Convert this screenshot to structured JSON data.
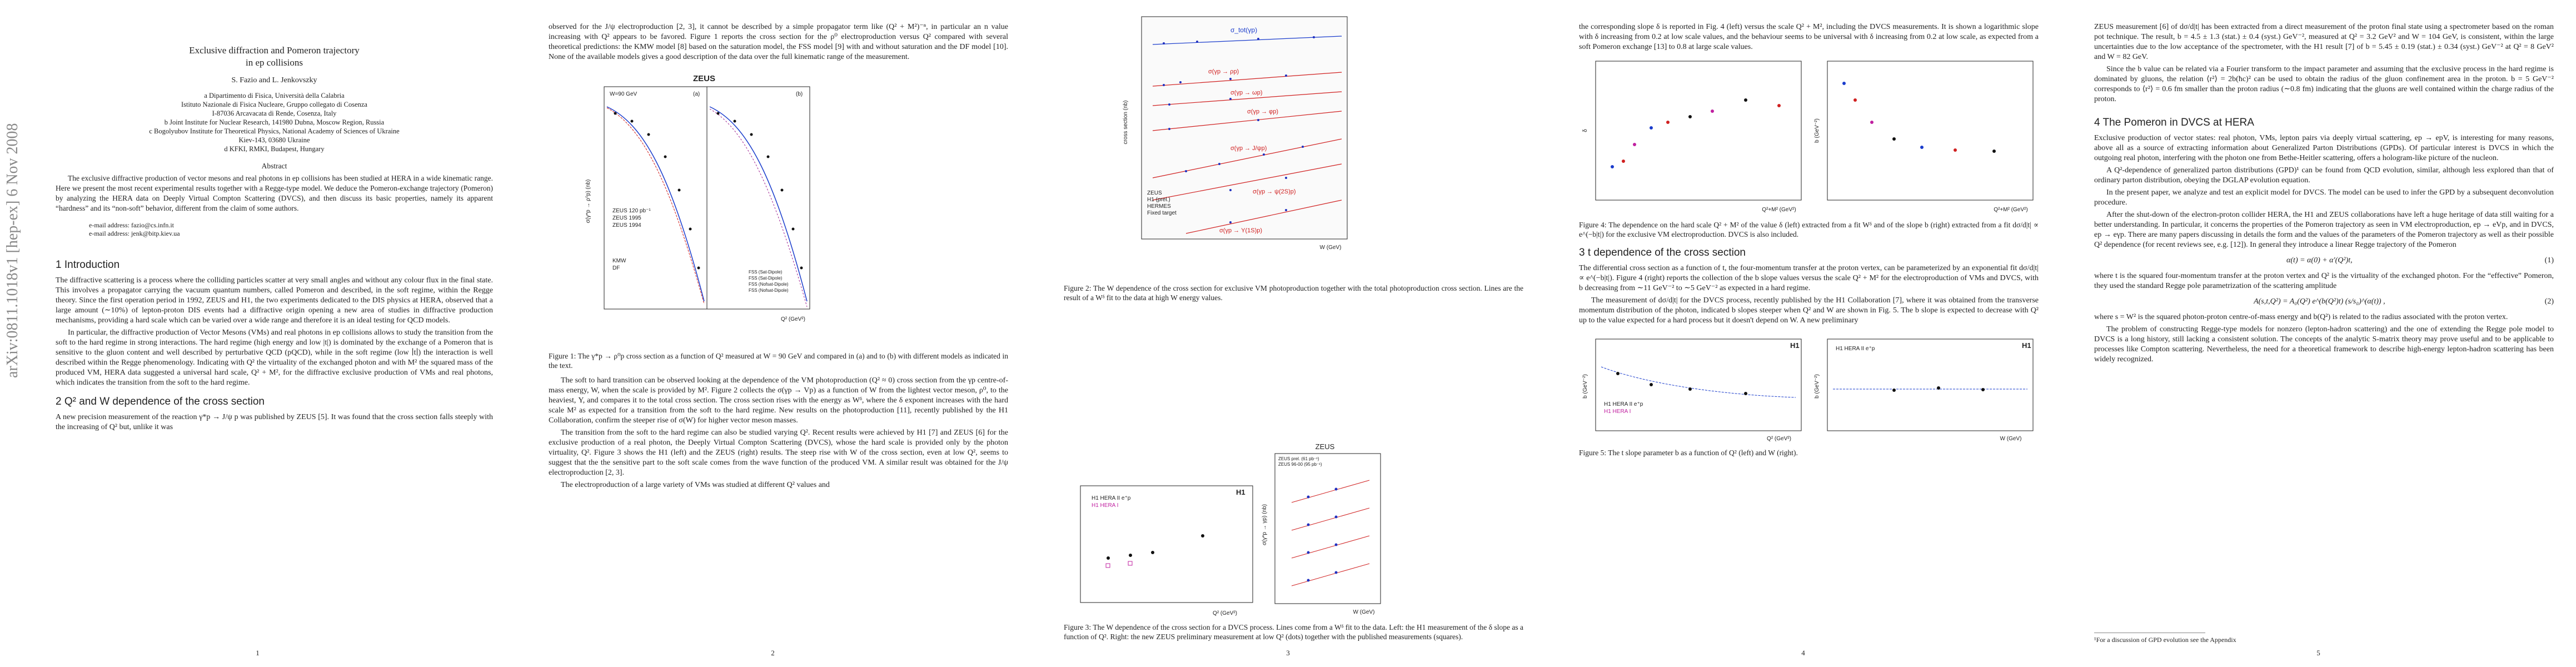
{
  "pages": [
    {
      "arxiv_stamp": "arXiv:0811.1018v1  [hep-ex]  6 Nov 2008",
      "title_lines": [
        "Exclusive diffraction and Pomeron trajectory",
        "in ep collisions"
      ],
      "authors": "S. Fazio and L. Jenkovszky",
      "affiliations": [
        "a Dipartimento di Fisica, Università della Calabria",
        "Istituto Nazionale di Fisica Nucleare, Gruppo collegato di Cosenza",
        "I-87036 Arcavacata di Rende, Cosenza, Italy",
        "b Joint Institute for Nuclear Research, 141980 Dubna, Moscow Region, Russia",
        "c Bogolyubov Institute for Theoretical Physics, National Academy of Sciences of Ukraine",
        "Kiev-143, 03680 Ukraine",
        "d KFKI, RMKI, Budapest, Hungary"
      ],
      "abstract_heading": "Abstract",
      "abstract": "The exclusive diffractive production of vector mesons and real photons in ep collisions has been studied at HERA in a wide kinematic range. Here we present the most recent experimental results together with a Regge-type model. We deduce the Pomeron-exchange trajectory (Pomeron) by analyzing the HERA data on Deeply Virtual Compton Scattering (DVCS), and then discuss its basic properties, namely its apparent “hardness” and its “non-soft” behavior, different from the claim of some authors.",
      "emails": [
        "e-mail address: fazio@cs.infn.it",
        "e-mail address: jenk@bitp.kiev.ua"
      ],
      "section_heading": "1   Introduction",
      "paragraphs": [
        "The diffractive scattering is a process where the colliding particles scatter at very small angles and without any colour flux in the final state. This involves a propagator carrying the vacuum quantum numbers, called Pomeron and described, in the soft regime, within the Regge theory. Since the first operation period in 1992, ZEUS and H1, the two experiments dedicated to the DIS physics at HERA, observed that a large amount (∼10%) of lepton-proton DIS events had a diffractive origin opening a new area of studies in diffractive production mechanisms, providing a hard scale which can be varied over a wide range and therefore it is an ideal testing for QCD models.",
        "In particular, the diffractive production of Vector Mesons (VMs) and real photons in ep collisions allows to study the transition from the soft to the hard regime in strong interactions. The hard regime (high energy and low |t|) is dominated by the exchange of a Pomeron that is sensitive to the gluon content and well described by perturbative QCD (pQCD), while in the soft regime (low ∣t∣) the interaction is well described within the Regge phenomenology. Indicating with Q² the virtuality of the exchanged photon and with M² the squared mass of the produced VM, HERA data suggested a universal hard scale, Q² + M², for the diffractive exclusive production of VMs and real photons, which indicates the transition from the soft to the hard regime."
      ],
      "section2_heading": "2   Q² and W dependence of the cross section",
      "section2_paragraph": "A new precision measurement of the reaction γ*p → J/ψ p was published by ZEUS [5]. It was found that the cross section falls steeply with the increasing of Q² but, unlike it was",
      "page_number": "1"
    },
    {
      "paragraph_top": "observed for the J/ψ electroproduction [2, 3], it cannot be described by a simple propagator term like (Q² + M²)⁻ⁿ, in particular an n value increasing with Q² appears to be favored. Figure 1 reports the cross section for the ρ⁰ electroproduction versus Q² compared with several theoretical predictions: the KMW model [8] based on the saturation model, the FSS model [9] with and without saturation and the DF model [10]. None of the available models gives a good description of the data over the full kinematic range of the measurement.",
      "figure_labels": [
        "ZEUS",
        "W=90 GeV",
        "(a)",
        "(b)",
        "ZEUS 120 pb⁻¹",
        "ZEUS 1995",
        "ZEUS 1994",
        "KMW",
        "DF",
        "FSS (Sat-Dipole)",
        "FSS (Sat-Dipole)",
        "FSS (Nofsat-Dipole)",
        "FSS (Nofsat-Dipole)",
        "σ(γ*p → ρ⁰p) (nb)",
        "Q² (GeV²)"
      ],
      "caption": "Figure 1: The γ*p → ρ⁰p cross section as a function of Q² measured at W = 90 GeV and compared in (a) and to (b) with different models as indicated in the text.",
      "paragraphs": [
        "The soft to hard transition can be observed looking at the dependence of the VM photoproduction (Q² ≈ 0) cross section from the γp centre-of-mass energy, W, when the scale is provided by M². Figure 2 collects the σ(γp → Vp) as a function of W from the lightest vector meson, ρ⁰, to the heaviest, Υ, and compares it to the total cross section. The cross section rises with the energy as Wᵟ, where the δ exponent increases with the hard scale M² as expected for a transition from the soft to the hard regime. New results on the photoproduction [11], recently published by the H1 Collaboration, confirm the steeper rise of σ(W) for higher vector meson masses.",
        "The transition from the soft to the hard regime can also be studied varying Q². Recent results were achieved by H1 [7] and ZEUS [6] for the exclusive production of a real photon, the Deeply Virtual Compton Scattering (DVCS), whose the hard scale is provided only by the photon virtuality, Q². Figure 3 shows the H1 (left) and the ZEUS (right) results. The steep rise with W of the cross section, even at low Q², seems to suggest that the the sensitive part to the soft scale comes from the wave function of the produced VM. A similar result was obtained for the J/ψ electroproduction [2, 3].",
        "The electroproduction of a large variety of VMs was studied at different Q² values and"
      ],
      "page_number": "2"
    },
    {
      "figure2_labels": [
        "cross section (nb)",
        "W (GeV)",
        "σ_tot(γp)",
        "σ(γp → ρp)",
        "σ(γp → ωp)",
        "σ(γp → φp)",
        "σ(γp → J/ψp)",
        "σ(γp → ψ(2S)p)",
        "σ(γp → Υ(1S)p)",
        "ZEUS",
        "H1 (prel.)",
        "HERMES",
        "Fixed target"
      ],
      "caption2": "Figure 2: The W dependence of the cross section for exclusive VM photoproduction together with the total photoproduction cross section. Lines are the result of a Wᵟ fit to the data at high W energy values.",
      "figure3_labels": [
        "H1",
        "H1 HERA II e⁺p",
        "H1 HERA I",
        "Q² (GeV²)",
        "ZEUS",
        "ZEUS prel. (61 pb⁻¹)",
        "ZEUS 96-00 (95 pb⁻¹)",
        "σ(γ*p → γp) (nb)",
        "W (GeV)"
      ],
      "caption3": "Figure 3: The W dependence of the cross section for a DVCS process. Lines come from a Wᵟ fit to the data. Left: the H1 measurement of the δ slope as a function of Q². Right: the new ZEUS preliminary measurement at low Q² (dots) together with the published measurements (squares).",
      "page_number": "3"
    },
    {
      "paragraph_top": "the corresponding slope δ is reported in Fig. 4 (left) versus the scale Q² + M², including the DVCS measurements. It is shown a logarithmic slope with δ increasing from 0.2 at low scale values, and the behaviour seems to be universal with δ increasing from 0.2 at low scale, as expected from a soft Pomeron exchange [13] to 0.8 at large scale values.",
      "figure4_labels": [
        "δ",
        "Q²+M² (GeV²)",
        "b (GeV⁻²)",
        "Q²+M² (GeV²)"
      ],
      "caption4": "Figure 4: The dependence on the hard scale Q² + M² of the value δ (left) extracted from a fit Wᵟ and of the slope b (right) extracted from a fit dσ/d|t| ∝ e^(−b|t|) for the exclusive VM electroproduction. DVCS is also included.",
      "section_heading": "3   t dependence of the cross section",
      "paragraphs": [
        "The differential cross section as a function of t, the four-momentum transfer at the proton vertex, can be parameterized by an exponential fit dσ/d|t| ∝ e^(−b|t|). Figure 4 (right) reports the collection of the b slope values versus the scale Q² + M² for the electroproduction of VMs and DVCS, with b decreasing from ∼11 GeV⁻² to ∼5 GeV⁻² as expected in a hard regime.",
        "The measurement of dσ/d|t| for the DVCS process, recently published by the H1 Collaboration [7], where it was obtained from the transverse momentum distribution of the photon, indicated b slopes steeper when Q² and W are shown in Fig. 5. The b slope is expected to decrease with Q² up to the value expected for a hard process but it doesn't depend on W. A new preliminary"
      ],
      "figure5_labels": [
        "b (GeV⁻²)",
        "Q² (GeV²)",
        "H1",
        "H1 HERA II e⁺p",
        "H1 HERA I",
        "b (GeV⁻²)",
        "W (GeV)",
        "H1",
        "H1 HERA II e⁺p"
      ],
      "caption5": "Figure 5: The t slope parameter b as a function of Q² (left) and W (right).",
      "page_number": "4"
    },
    {
      "paragraph_top": "ZEUS measurement [6] of dσ/d|t| has been extracted from a direct measurement of the proton final state using a spectrometer based on the roman pot technique. The result, b = 4.5 ± 1.3 (stat.) ± 0.4 (syst.) GeV⁻², measured at Q² = 3.2 GeV² and W = 104 GeV, is consistent, within the large uncertainties due to the low acceptance of the spectrometer, with the H1 result [7] of b = 5.45 ± 0.19 (stat.) ± 0.34 (syst.) GeV⁻² at Q² = 8 GeV² and W = 82 GeV.",
      "paragraph_b": "Since the b value can be related via a Fourier transform to the impact parameter and assuming that the exclusive process in the hard regime is dominated by gluons, the relation ⟨r²⟩ = 2b(ħc)² can be used to obtain the radius of the gluon confinement area in the proton. b = 5 GeV⁻² corresponds to ⟨r²⟩ = 0.6 fm smaller than the proton radius (∼0.8 fm) indicating that the gluons are well contained within the charge radius of the proton.",
      "section_heading": "4   The Pomeron in DVCS at HERA",
      "paragraphs": [
        "Exclusive production of vector states: real photon, VMs, lepton pairs via deeply virtual scattering, ep → epV, is interesting for many reasons, above all as a source of extracting information about Generalized Parton Distributions (GPDs). Of particular interest is DVCS in which the outgoing real photon, interfering with the photon one from Bethe-Heitler scattering, offers a hologram-like picture of the nucleon.",
        "A Q²-dependence of generalized parton distributions (GPD)¹ can be found from QCD evolution, similar, although less explored than that of ordinary parton distribution, obeying the DGLAP evolution equation.",
        "In the present paper, we analyze and test an explicit model for DVCS. The model can be used to infer the GPD by a subsequent deconvolution procedure.",
        "After the shut-down of the electron-proton collider HERA, the H1 and ZEUS collaborations have left a huge heritage of data still waiting for a better understanding. In particular, it concerns the properties of the Pomeron trajectory as seen in VM electroproduction, ep → eVp, and in DVCS, ep → eγp. There are many papers discussing in details the form and the values of the parameters of the Pomeron trajectory as well as their possible Q² dependence (for recent reviews see, e.g. [12]). In general they introduce a linear Regge trajectory of the Pomeron"
      ],
      "equation1": "α(t) = α(0) + α′(Q²)t,",
      "equation1_number": "(1)",
      "paragraph_mid": "where t is the squared four-momentum transfer at the proton vertex and Q² is the virtuality of the exchanged photon. For the “effective” Pomeron, they used the standard Regge pole parametrization of the scattering amplitude",
      "equation2": "A(s,t,Q²) = A₀(Q²) e^(b(Q²)t) (s/s₀)^(α(t)) ,",
      "equation2_number": "(2)",
      "paragraph_end": "where s = W² is the squared photon-proton centre-of-mass energy and b(Q²) is related to the radius associated with the proton vertex.",
      "paragraph_last": "The problem of constructing Regge-type models for nonzero (lepton-hadron scattering) and the one of extending the Regge pole model to DVCS is a long history, still lacking a consistent solution. The concepts of the analytic S-matrix theory may prove useful and to be applicable to processes like Compton scattering. Nevertheless, the need for a theoretical framework to describe high-energy lepton-hadron scattering has been widely recognized.",
      "footnote": "¹For a discussion of GPD evolution see the Appendix",
      "page_number": "5"
    }
  ]
}
